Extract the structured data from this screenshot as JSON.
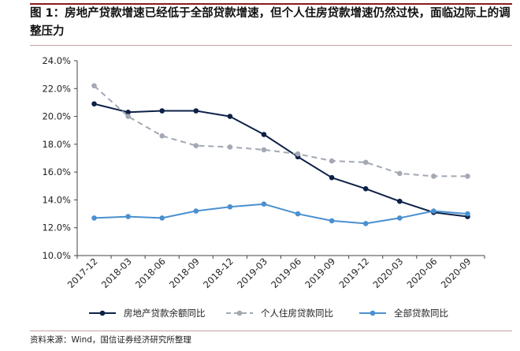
{
  "header": {
    "title": "图 1：房地产贷款增速已经低于全部贷款增速，但个人住房贷款增速仍然过快，面临边际上的调整压力"
  },
  "footer": {
    "source": "资料来源：Wind，国信证券经济研究所整理"
  },
  "chart_data": {
    "type": "line",
    "x": [
      "2017-12",
      "2018-03",
      "2018-06",
      "2018-09",
      "2018-12",
      "2019-03",
      "2019-06",
      "2019-09",
      "2019-12",
      "2020-03",
      "2020-06",
      "2020-09"
    ],
    "y_ticks": [
      "10.0%",
      "12.0%",
      "14.0%",
      "16.0%",
      "18.0%",
      "20.0%",
      "22.0%",
      "24.0%"
    ],
    "ylim": [
      10,
      24
    ],
    "y_unit": "%",
    "grid": false,
    "legend_position": "bottom",
    "series": [
      {
        "name": "房地产贷款余额同比",
        "color": "#0d2147",
        "line_style": "solid",
        "marker": "circle",
        "values": [
          20.9,
          20.3,
          20.4,
          20.4,
          20.0,
          18.7,
          17.1,
          15.6,
          14.8,
          13.9,
          13.1,
          12.8
        ]
      },
      {
        "name": "个人住房贷款同比",
        "color": "#a3a8b3",
        "line_style": "dashed",
        "marker": "circle",
        "values": [
          22.2,
          20.0,
          18.6,
          17.9,
          17.8,
          17.6,
          17.3,
          16.8,
          16.7,
          15.9,
          15.7,
          15.7
        ]
      },
      {
        "name": "全部贷款同比",
        "color": "#4a90cf",
        "line_style": "solid",
        "marker": "circle",
        "values": [
          12.7,
          12.8,
          12.7,
          13.2,
          13.5,
          13.7,
          13.0,
          12.5,
          12.3,
          12.7,
          13.2,
          13.0
        ]
      }
    ]
  }
}
